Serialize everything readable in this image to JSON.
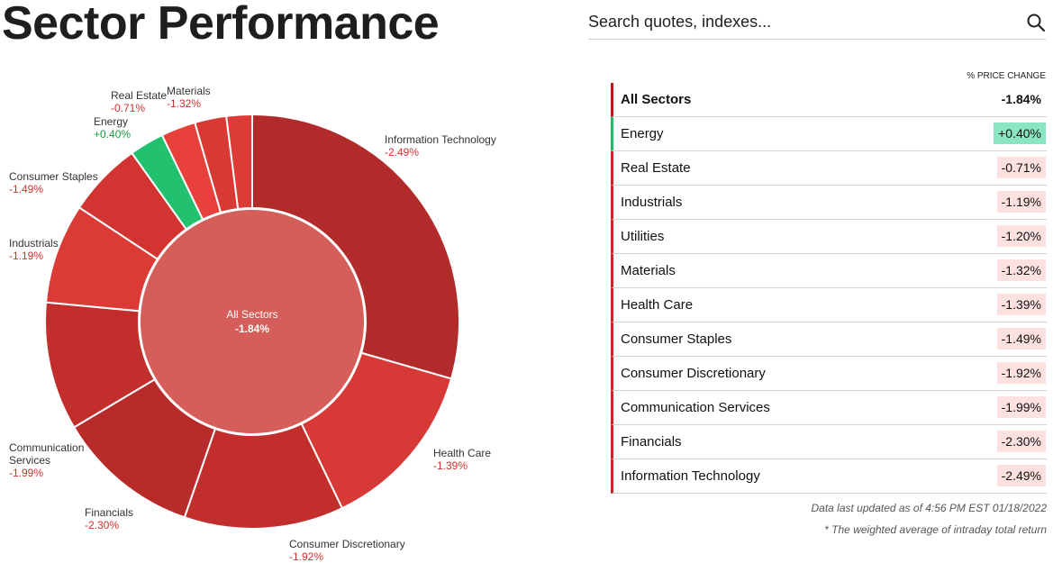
{
  "page": {
    "title": "Sector Performance"
  },
  "search": {
    "placeholder": "Search quotes, indexes..."
  },
  "table": {
    "column_header": "% PRICE CHANGE",
    "rows": [
      {
        "name": "All Sectors",
        "value": "-1.84%",
        "kind": "total"
      },
      {
        "name": "Energy",
        "value": "+0.40%",
        "kind": "pos"
      },
      {
        "name": "Real Estate",
        "value": "-0.71%",
        "kind": "neg"
      },
      {
        "name": "Industrials",
        "value": "-1.19%",
        "kind": "neg"
      },
      {
        "name": "Utilities",
        "value": "-1.20%",
        "kind": "neg"
      },
      {
        "name": "Materials",
        "value": "-1.32%",
        "kind": "neg"
      },
      {
        "name": "Health Care",
        "value": "-1.39%",
        "kind": "neg"
      },
      {
        "name": "Consumer Staples",
        "value": "-1.49%",
        "kind": "neg"
      },
      {
        "name": "Consumer Discretionary",
        "value": "-1.92%",
        "kind": "neg"
      },
      {
        "name": "Communication Services",
        "value": "-1.99%",
        "kind": "neg"
      },
      {
        "name": "Financials",
        "value": "-2.30%",
        "kind": "neg"
      },
      {
        "name": "Information Technology",
        "value": "-2.49%",
        "kind": "neg"
      }
    ]
  },
  "notes": {
    "updated": "Data last updated as of 4:56 PM EST 01/18/2022",
    "footnote": "* The weighted average of intraday total return"
  },
  "colors": {
    "positive": "#21c170",
    "negative_label": "#d32f2f",
    "positive_label": "#1a9a3c",
    "center": "#d55e5a",
    "positive_badge": "#8ae6c2",
    "negative_badge": "#fde0e0"
  },
  "chart_data": {
    "type": "pie",
    "center": {
      "label": "All Sectors",
      "value": "-1.84%",
      "change": -1.84
    },
    "slices": [
      {
        "label": "Information Technology",
        "value_text": "-2.49%",
        "change": -2.49,
        "share": 0.2945,
        "color": "#b22b2b"
      },
      {
        "label": "Health Care",
        "value_text": "-1.39%",
        "change": -1.39,
        "share": 0.134,
        "color": "#d73a36"
      },
      {
        "label": "Consumer Discretionary",
        "value_text": "-1.92%",
        "change": -1.92,
        "share": 0.1245,
        "color": "#c22e2c"
      },
      {
        "label": "Financials",
        "value_text": "-2.30%",
        "change": -2.3,
        "share": 0.1118,
        "color": "#b72b2a"
      },
      {
        "label": "Communication Services",
        "value_text": "-1.99%",
        "change": -1.99,
        "share": 0.1,
        "color": "#c12e2c"
      },
      {
        "label": "Industrials",
        "value_text": "-1.19%",
        "change": -1.19,
        "share": 0.078,
        "color": "#dc3a35"
      },
      {
        "label": "Consumer Staples",
        "value_text": "-1.49%",
        "change": -1.49,
        "share": 0.0585,
        "color": "#d23531"
      },
      {
        "label": "Energy",
        "value_text": "+0.40%",
        "change": 0.4,
        "share": 0.027,
        "color": "#21c170"
      },
      {
        "label": "Real Estate",
        "value_text": "-0.71%",
        "change": -0.71,
        "share": 0.027,
        "color": "#e8403b"
      },
      {
        "label": "Materials",
        "value_text": "-1.32%",
        "change": -1.32,
        "share": 0.0247,
        "color": "#d83935"
      },
      {
        "label": "Utilities",
        "value_text": "-1.20%",
        "change": -1.2,
        "share": 0.02,
        "color": "#dd3b37"
      }
    ]
  }
}
